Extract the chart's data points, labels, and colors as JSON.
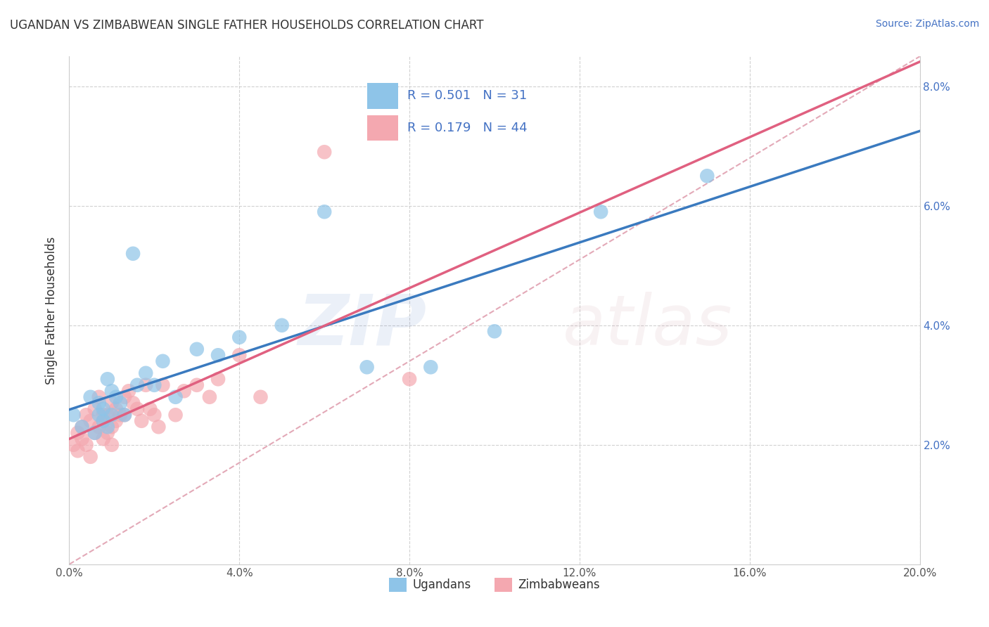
{
  "title": "UGANDAN VS ZIMBABWEAN SINGLE FATHER HOUSEHOLDS CORRELATION CHART",
  "source": "Source: ZipAtlas.com",
  "ylabel": "Single Father Households",
  "ugandan_R": 0.501,
  "ugandan_N": 31,
  "zimbabwean_R": 0.179,
  "zimbabwean_N": 44,
  "ugandan_color": "#8ec4e8",
  "zimbabwean_color": "#f4a8b0",
  "ugandan_line_color": "#3a7abf",
  "zimbabwean_line_color": "#e06080",
  "diagonal_color": "#e0a0b0",
  "background_color": "#ffffff",
  "grid_color": "#cccccc",
  "legend_text_color": "#4472c4",
  "xlim": [
    0.0,
    0.2
  ],
  "ylim": [
    0.0,
    0.085
  ],
  "xticks": [
    0.0,
    0.04,
    0.08,
    0.12,
    0.16,
    0.2
  ],
  "yticks": [
    0.02,
    0.04,
    0.06,
    0.08
  ],
  "xticklabels": [
    "0.0%",
    "4.0%",
    "8.0%",
    "12.0%",
    "16.0%",
    "20.0%"
  ],
  "yticklabels_right": [
    "2.0%",
    "4.0%",
    "6.0%",
    "8.0%"
  ],
  "ugandan_x": [
    0.001,
    0.003,
    0.005,
    0.006,
    0.007,
    0.007,
    0.008,
    0.008,
    0.009,
    0.009,
    0.01,
    0.01,
    0.011,
    0.012,
    0.013,
    0.015,
    0.016,
    0.018,
    0.02,
    0.022,
    0.025,
    0.03,
    0.035,
    0.04,
    0.05,
    0.06,
    0.07,
    0.085,
    0.1,
    0.125,
    0.15
  ],
  "ugandan_y": [
    0.025,
    0.023,
    0.028,
    0.022,
    0.025,
    0.027,
    0.024,
    0.026,
    0.023,
    0.031,
    0.025,
    0.029,
    0.028,
    0.027,
    0.025,
    0.052,
    0.03,
    0.032,
    0.03,
    0.034,
    0.028,
    0.036,
    0.035,
    0.038,
    0.04,
    0.059,
    0.033,
    0.033,
    0.039,
    0.059,
    0.065
  ],
  "zimbabwean_x": [
    0.001,
    0.002,
    0.002,
    0.003,
    0.003,
    0.004,
    0.004,
    0.005,
    0.005,
    0.006,
    0.006,
    0.007,
    0.007,
    0.008,
    0.008,
    0.008,
    0.009,
    0.009,
    0.01,
    0.01,
    0.01,
    0.011,
    0.011,
    0.012,
    0.013,
    0.013,
    0.014,
    0.015,
    0.016,
    0.017,
    0.018,
    0.019,
    0.02,
    0.021,
    0.022,
    0.025,
    0.027,
    0.03,
    0.033,
    0.035,
    0.04,
    0.045,
    0.06,
    0.08
  ],
  "zimbabwean_y": [
    0.02,
    0.019,
    0.022,
    0.021,
    0.023,
    0.02,
    0.025,
    0.018,
    0.024,
    0.022,
    0.026,
    0.023,
    0.028,
    0.024,
    0.025,
    0.021,
    0.022,
    0.025,
    0.02,
    0.023,
    0.027,
    0.024,
    0.026,
    0.025,
    0.025,
    0.028,
    0.029,
    0.027,
    0.026,
    0.024,
    0.03,
    0.026,
    0.025,
    0.023,
    0.03,
    0.025,
    0.029,
    0.03,
    0.028,
    0.031,
    0.035,
    0.028,
    0.069,
    0.031
  ]
}
